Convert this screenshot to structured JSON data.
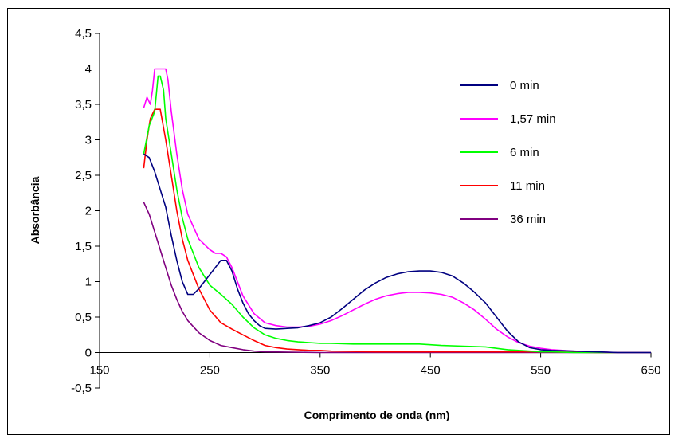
{
  "chart_data": {
    "type": "line",
    "title": "",
    "xlabel": "Comprimento de onda (nm)",
    "ylabel": "Absorbância",
    "xlim": [
      150,
      650
    ],
    "ylim": [
      -0.5,
      4.5
    ],
    "xticks": [
      150,
      250,
      350,
      450,
      550,
      650
    ],
    "xtick_labels": [
      "150",
      "250",
      "350",
      "450",
      "550",
      "650"
    ],
    "yticks": [
      -0.5,
      0,
      0.5,
      1,
      1.5,
      2,
      2.5,
      3,
      3.5,
      4,
      4.5
    ],
    "ytick_labels": [
      "-0,5",
      "0",
      "0,5",
      "1",
      "1,5",
      "2",
      "2,5",
      "3",
      "3,5",
      "4",
      "4,5"
    ],
    "grid": false,
    "legend_position": "right",
    "series": [
      {
        "name": "0 min",
        "color": "#000080",
        "x": [
          190,
          195,
          200,
          205,
          210,
          215,
          220,
          225,
          230,
          235,
          240,
          245,
          250,
          255,
          260,
          265,
          270,
          275,
          280,
          285,
          290,
          295,
          300,
          310,
          320,
          330,
          340,
          350,
          360,
          370,
          380,
          390,
          400,
          410,
          420,
          430,
          440,
          450,
          460,
          470,
          480,
          490,
          500,
          510,
          520,
          530,
          540,
          550,
          560,
          580,
          600,
          620,
          650
        ],
        "y": [
          2.8,
          2.75,
          2.55,
          2.3,
          2.05,
          1.65,
          1.3,
          1.0,
          0.82,
          0.82,
          0.9,
          1.0,
          1.1,
          1.2,
          1.3,
          1.3,
          1.15,
          0.9,
          0.7,
          0.55,
          0.45,
          0.38,
          0.34,
          0.33,
          0.34,
          0.35,
          0.38,
          0.42,
          0.5,
          0.62,
          0.75,
          0.88,
          0.98,
          1.06,
          1.11,
          1.14,
          1.15,
          1.15,
          1.13,
          1.08,
          0.98,
          0.85,
          0.7,
          0.5,
          0.3,
          0.15,
          0.07,
          0.04,
          0.03,
          0.02,
          0.01,
          0.0,
          0.0
        ]
      },
      {
        "name": "1,57 min",
        "color": "#FF00FF",
        "x": [
          190,
          193,
          196,
          198,
          200,
          205,
          210,
          212,
          215,
          220,
          225,
          230,
          240,
          250,
          255,
          260,
          265,
          270,
          280,
          290,
          300,
          310,
          320,
          330,
          340,
          350,
          360,
          370,
          380,
          390,
          400,
          410,
          420,
          430,
          440,
          450,
          460,
          470,
          480,
          490,
          500,
          510,
          520,
          530,
          540,
          550,
          560,
          580,
          600,
          620,
          650
        ],
        "y": [
          3.45,
          3.6,
          3.5,
          3.7,
          4.0,
          4.0,
          4.0,
          3.85,
          3.4,
          2.8,
          2.3,
          1.95,
          1.6,
          1.45,
          1.4,
          1.4,
          1.35,
          1.2,
          0.8,
          0.55,
          0.42,
          0.38,
          0.36,
          0.36,
          0.37,
          0.4,
          0.45,
          0.52,
          0.6,
          0.68,
          0.75,
          0.8,
          0.83,
          0.85,
          0.85,
          0.84,
          0.82,
          0.78,
          0.7,
          0.6,
          0.47,
          0.33,
          0.22,
          0.14,
          0.09,
          0.06,
          0.04,
          0.02,
          0.01,
          0.0,
          0.0
        ]
      },
      {
        "name": "6 min",
        "color": "#00FF00",
        "x": [
          190,
          195,
          200,
          203,
          205,
          208,
          210,
          215,
          220,
          225,
          230,
          240,
          250,
          260,
          270,
          280,
          290,
          300,
          310,
          320,
          330,
          340,
          350,
          360,
          380,
          400,
          420,
          440,
          460,
          480,
          500,
          510,
          520,
          530,
          540,
          550,
          560,
          580,
          600,
          650
        ],
        "y": [
          2.8,
          3.2,
          3.4,
          3.9,
          3.9,
          3.7,
          3.3,
          2.8,
          2.3,
          1.9,
          1.6,
          1.2,
          0.95,
          0.82,
          0.68,
          0.5,
          0.35,
          0.25,
          0.2,
          0.17,
          0.15,
          0.14,
          0.13,
          0.13,
          0.12,
          0.12,
          0.12,
          0.12,
          0.1,
          0.09,
          0.08,
          0.06,
          0.04,
          0.03,
          0.02,
          0.01,
          0.01,
          0.0,
          0.0,
          0.0
        ]
      },
      {
        "name": "11 min",
        "color": "#FF0000",
        "x": [
          190,
          193,
          196,
          200,
          205,
          210,
          215,
          220,
          225,
          230,
          240,
          250,
          260,
          270,
          280,
          290,
          300,
          310,
          320,
          330,
          340,
          350,
          360,
          400,
          450,
          500,
          550,
          600,
          650
        ],
        "y": [
          2.6,
          3.0,
          3.3,
          3.43,
          3.43,
          3.0,
          2.5,
          2.0,
          1.6,
          1.3,
          0.9,
          0.6,
          0.42,
          0.33,
          0.25,
          0.17,
          0.1,
          0.07,
          0.05,
          0.04,
          0.03,
          0.03,
          0.02,
          0.01,
          0.01,
          0.01,
          0.01,
          0.0,
          0.0
        ]
      },
      {
        "name": "36 min",
        "color": "#800080",
        "x": [
          190,
          195,
          200,
          205,
          210,
          215,
          220,
          225,
          230,
          240,
          250,
          260,
          270,
          280,
          290,
          300,
          350,
          400,
          450,
          500,
          550,
          600,
          650
        ],
        "y": [
          2.12,
          1.95,
          1.7,
          1.45,
          1.2,
          0.95,
          0.75,
          0.58,
          0.45,
          0.28,
          0.17,
          0.1,
          0.07,
          0.04,
          0.02,
          0.01,
          0.0,
          0.0,
          0.0,
          0.0,
          0.0,
          0.0,
          0.0
        ]
      }
    ]
  }
}
